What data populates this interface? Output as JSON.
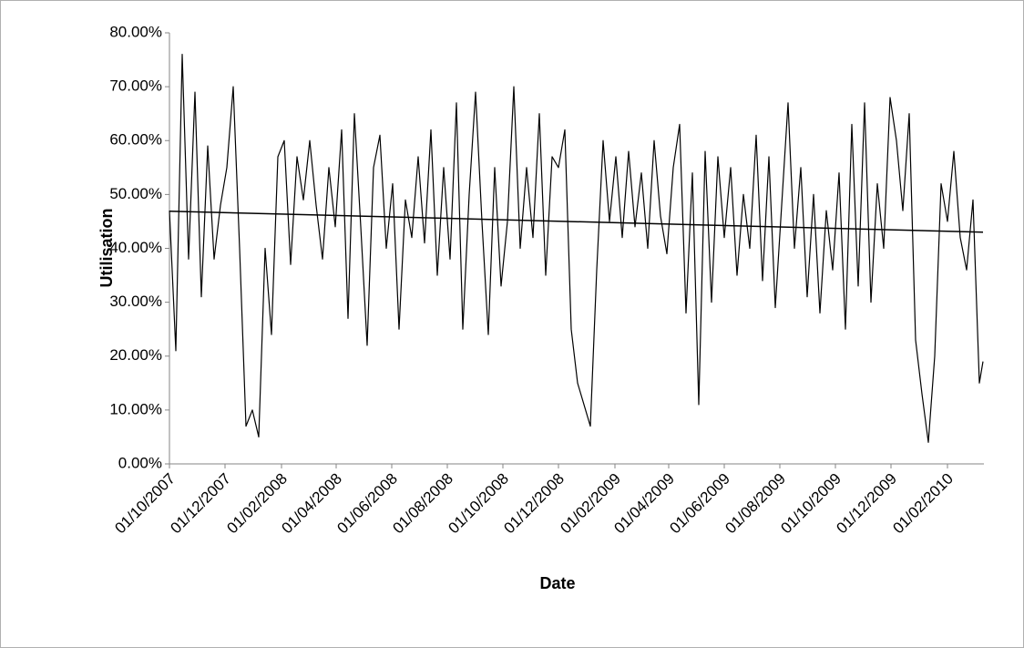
{
  "chart_data": {
    "type": "line",
    "xlabel": "Date",
    "ylabel": "Utilisation",
    "xlim": [
      "01/10/2007",
      "13/03/2010"
    ],
    "xticks": [
      "01/10/2007",
      "01/12/2007",
      "01/02/2008",
      "01/04/2008",
      "01/06/2008",
      "01/08/2008",
      "01/10/2008",
      "01/12/2008",
      "01/02/2009",
      "01/04/2009",
      "01/06/2009",
      "01/08/2009",
      "01/10/2009",
      "01/12/2009",
      "01/02/2010"
    ],
    "ylim": [
      0,
      80
    ],
    "yticks": [
      {
        "value": 0,
        "label": "0.00%"
      },
      {
        "value": 10,
        "label": "10.00%"
      },
      {
        "value": 20,
        "label": "20.00%"
      },
      {
        "value": 30,
        "label": "30.00%"
      },
      {
        "value": 40,
        "label": "40.00%"
      },
      {
        "value": 50,
        "label": "50.00%"
      },
      {
        "value": 60,
        "label": "60.00%"
      },
      {
        "value": 70,
        "label": "70.00%"
      },
      {
        "value": 80,
        "label": "80.00%"
      }
    ],
    "grid": false,
    "series": [
      {
        "color": "#000000",
        "x": [
          "01/10/2007",
          "08/10/2007",
          "15/10/2007",
          "22/10/2007",
          "29/10/2007",
          "05/11/2007",
          "12/11/2007",
          "19/11/2007",
          "26/11/2007",
          "03/12/2007",
          "10/12/2007",
          "17/12/2007",
          "24/12/2007",
          "31/12/2007",
          "07/01/2008",
          "14/01/2008",
          "21/01/2008",
          "28/01/2008",
          "04/02/2008",
          "11/02/2008",
          "18/02/2008",
          "25/02/2008",
          "03/03/2008",
          "10/03/2008",
          "17/03/2008",
          "24/03/2008",
          "31/03/2008",
          "07/04/2008",
          "14/04/2008",
          "21/04/2008",
          "28/04/2008",
          "05/05/2008",
          "12/05/2008",
          "19/05/2008",
          "26/05/2008",
          "02/06/2008",
          "09/06/2008",
          "16/06/2008",
          "23/06/2008",
          "30/06/2008",
          "07/07/2008",
          "14/07/2008",
          "21/07/2008",
          "28/07/2008",
          "04/08/2008",
          "11/08/2008",
          "18/08/2008",
          "25/08/2008",
          "01/09/2008",
          "08/09/2008",
          "15/09/2008",
          "22/09/2008",
          "29/09/2008",
          "06/10/2008",
          "13/10/2008",
          "20/10/2008",
          "27/10/2008",
          "03/11/2008",
          "10/11/2008",
          "17/11/2008",
          "24/11/2008",
          "01/12/2008",
          "08/12/2008",
          "15/12/2008",
          "22/12/2008",
          "29/12/2008",
          "05/01/2009",
          "12/01/2009",
          "19/01/2009",
          "26/01/2009",
          "02/02/2009",
          "09/02/2009",
          "16/02/2009",
          "23/02/2009",
          "02/03/2009",
          "09/03/2009",
          "16/03/2009",
          "23/03/2009",
          "30/03/2009",
          "06/04/2009",
          "13/04/2009",
          "20/04/2009",
          "27/04/2009",
          "04/05/2009",
          "11/05/2009",
          "18/05/2009",
          "25/05/2009",
          "01/06/2009",
          "08/06/2009",
          "15/06/2009",
          "22/06/2009",
          "29/06/2009",
          "06/07/2009",
          "13/07/2009",
          "20/07/2009",
          "27/07/2009",
          "03/08/2009",
          "10/08/2009",
          "17/08/2009",
          "24/08/2009",
          "31/08/2009",
          "07/09/2009",
          "14/09/2009",
          "21/09/2009",
          "28/09/2009",
          "05/10/2009",
          "12/10/2009",
          "19/10/2009",
          "26/10/2009",
          "02/11/2009",
          "09/11/2009",
          "16/11/2009",
          "23/11/2009",
          "30/11/2009",
          "07/12/2009",
          "14/12/2009",
          "21/12/2009",
          "28/12/2009",
          "04/01/2010",
          "11/01/2010",
          "18/01/2010",
          "25/01/2010",
          "01/02/2010",
          "08/02/2010",
          "15/02/2010",
          "22/02/2010",
          "01/03/2010",
          "08/03/2010",
          "12/03/2010"
        ],
        "values": [
          47,
          21,
          76,
          38,
          69,
          31,
          59,
          38,
          48,
          55,
          70,
          40,
          7,
          10,
          5,
          40,
          24,
          57,
          60,
          37,
          57,
          49,
          60,
          48,
          38,
          55,
          44,
          62,
          27,
          65,
          44,
          22,
          55,
          61,
          40,
          52,
          25,
          49,
          42,
          57,
          41,
          62,
          35,
          55,
          38,
          67,
          25,
          50,
          69,
          45,
          24,
          55,
          33,
          45,
          70,
          40,
          55,
          42,
          65,
          35,
          57,
          55,
          62,
          25,
          15,
          11,
          7,
          36,
          60,
          45,
          57,
          42,
          58,
          44,
          54,
          40,
          60,
          46,
          39,
          55,
          63,
          28,
          54,
          11,
          58,
          30,
          57,
          42,
          55,
          35,
          50,
          40,
          61,
          34,
          57,
          29,
          48,
          67,
          40,
          55,
          31,
          50,
          28,
          47,
          36,
          54,
          25,
          63,
          33,
          67,
          30,
          52,
          40,
          68,
          60,
          47,
          65,
          23,
          13,
          4,
          20,
          52,
          45,
          58,
          42,
          36,
          49,
          15,
          19
        ]
      },
      {
        "color": "#000000",
        "x": [
          "01/10/2007",
          "12/03/2010"
        ],
        "values": [
          46.9,
          43.0
        ]
      }
    ]
  }
}
